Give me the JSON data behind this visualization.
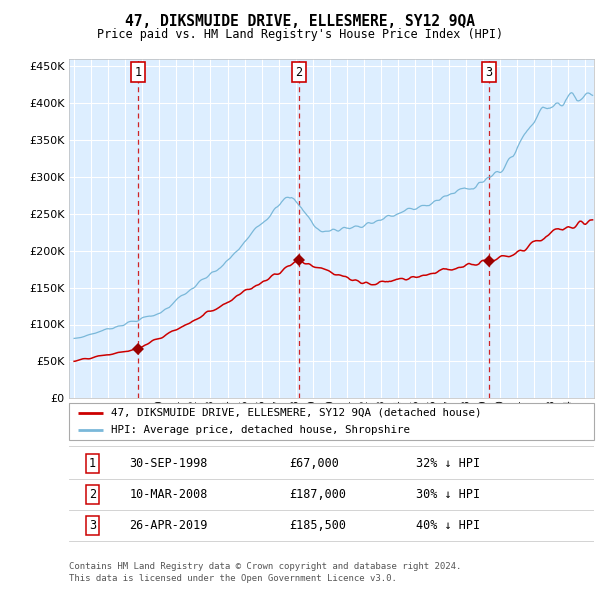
{
  "title": "47, DIKSMUIDE DRIVE, ELLESMERE, SY12 9QA",
  "subtitle": "Price paid vs. HM Land Registry's House Price Index (HPI)",
  "background_color": "#ddeeff",
  "hpi_line_color": "#7ab8d9",
  "price_line_color": "#cc0000",
  "marker_color": "#990000",
  "vline_color": "#cc0000",
  "ylim": [
    0,
    460000
  ],
  "yticks": [
    0,
    50000,
    100000,
    150000,
    200000,
    250000,
    300000,
    350000,
    400000,
    450000
  ],
  "xlim_start": 1994.7,
  "xlim_end": 2025.5,
  "purchase_dates": [
    1998.75,
    2008.19,
    2019.32
  ],
  "purchase_prices": [
    67000,
    187000,
    185500
  ],
  "purchase_labels": [
    "1",
    "2",
    "3"
  ],
  "legend_price_label": "47, DIKSMUIDE DRIVE, ELLESMERE, SY12 9QA (detached house)",
  "legend_hpi_label": "HPI: Average price, detached house, Shropshire",
  "table_rows": [
    [
      "1",
      "30-SEP-1998",
      "£67,000",
      "32% ↓ HPI"
    ],
    [
      "2",
      "10-MAR-2008",
      "£187,000",
      "30% ↓ HPI"
    ],
    [
      "3",
      "26-APR-2019",
      "£185,500",
      "40% ↓ HPI"
    ]
  ],
  "footer_text": "Contains HM Land Registry data © Crown copyright and database right 2024.\nThis data is licensed under the Open Government Licence v3.0."
}
